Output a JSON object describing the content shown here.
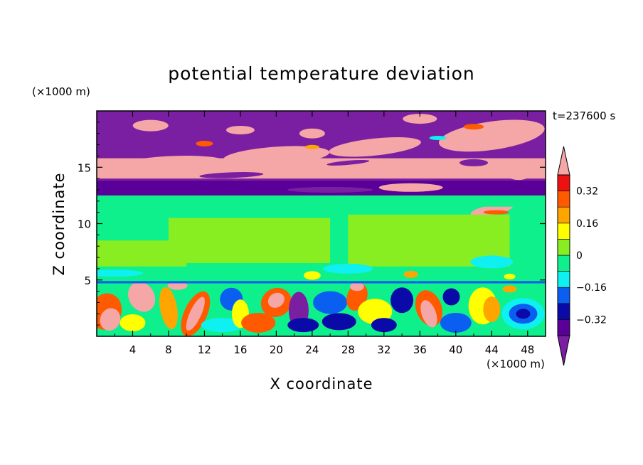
{
  "chart_data": {
    "type": "heatmap",
    "title": "potential temperature deviation",
    "xlabel": "X coordinate",
    "ylabel": "Z coordinate",
    "x_unit": "(×1000 m)",
    "y_unit": "(×1000 m)",
    "time_label": "t=237600 s",
    "xlim": [
      0,
      50
    ],
    "ylim": [
      0,
      20
    ],
    "x_ticks": [
      "4",
      "8",
      "12",
      "16",
      "20",
      "24",
      "28",
      "32",
      "36",
      "40",
      "44",
      "48"
    ],
    "y_ticks": [
      "5",
      "10",
      "15"
    ],
    "colorbar": {
      "tick_labels": [
        "0.32",
        "0.16",
        "0",
        "−0.16",
        "−0.32"
      ],
      "tick_values": [
        0.32,
        0.16,
        0,
        -0.16,
        -0.32
      ],
      "levels": [
        -0.4,
        -0.32,
        -0.24,
        -0.16,
        -0.08,
        0,
        0.08,
        0.16,
        0.24,
        0.32,
        0.4
      ],
      "colors": {
        "below": "#7b1fa2",
        "bands": [
          "#5a0099",
          "#0a0aa8",
          "#0a5ff0",
          "#0ff0f0",
          "#0ef08c",
          "#88ee22",
          "#ffff00",
          "#ffa500",
          "#ff5a00",
          "#ee1111"
        ],
        "above": "#f5a6a6"
      }
    },
    "layers": [
      {
        "z_range": [
          14,
          20
        ],
        "dominant": "below",
        "secondary": "above"
      },
      {
        "z_range": [
          12.5,
          14
        ],
        "dominant": "band_-0.40"
      },
      {
        "z_range": [
          5,
          12.5
        ],
        "dominant": "band_0.00_0.08",
        "secondary": "band_-0.08_0"
      },
      {
        "z_range": [
          0,
          5
        ],
        "dominant": "mixed"
      }
    ]
  }
}
